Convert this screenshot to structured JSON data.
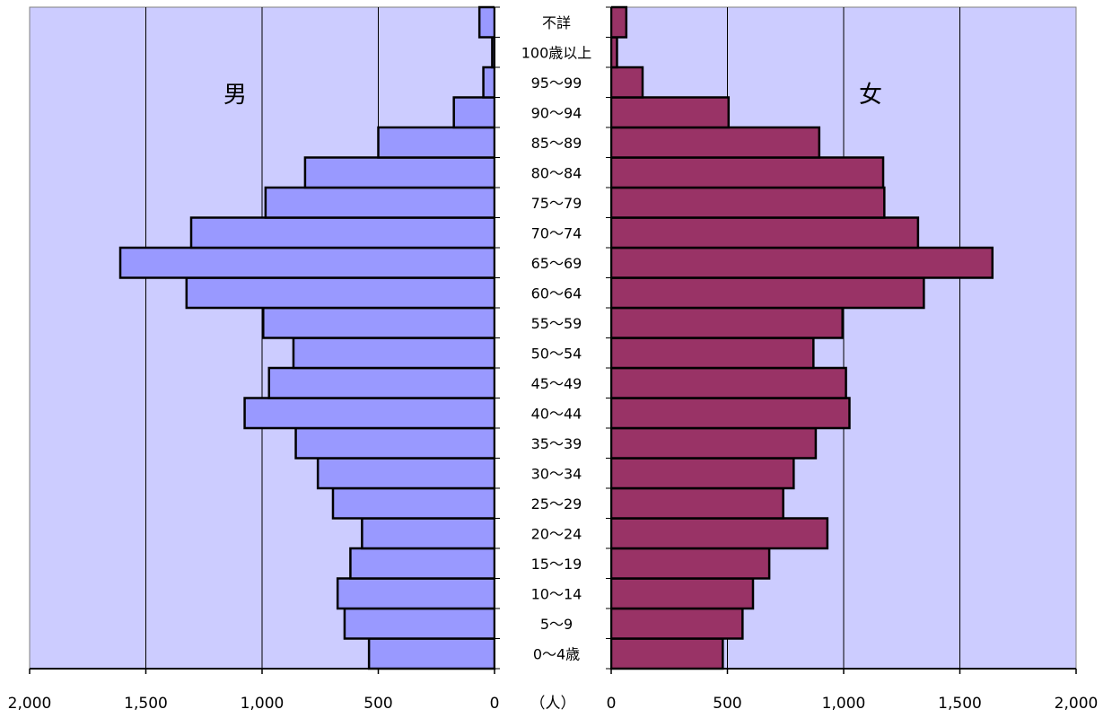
{
  "chart_data": {
    "type": "bar",
    "subtype": "population-pyramid",
    "categories": [
      "0〜4歳",
      "5〜9",
      "10〜14",
      "15〜19",
      "20〜24",
      "25〜29",
      "30〜34",
      "35〜39",
      "40〜44",
      "45〜49",
      "50〜54",
      "55〜59",
      "60〜64",
      "65〜69",
      "70〜74",
      "75〜79",
      "80〜84",
      "85〜89",
      "90〜94",
      "95〜99",
      "100歳以上",
      "不詳"
    ],
    "series": [
      {
        "name": "男",
        "side": "left",
        "values": [
          540,
          645,
          675,
          620,
          570,
          695,
          760,
          855,
          1075,
          970,
          865,
          995,
          1325,
          1610,
          1305,
          985,
          815,
          500,
          175,
          48,
          10,
          65
        ]
      },
      {
        "name": "女",
        "side": "right",
        "values": [
          480,
          565,
          610,
          680,
          930,
          740,
          785,
          880,
          1025,
          1010,
          870,
          995,
          1345,
          1640,
          1320,
          1175,
          1170,
          895,
          505,
          135,
          25,
          65
        ]
      }
    ],
    "xlim": [
      0,
      2000
    ],
    "x_ticks": [
      0,
      500,
      1000,
      1500,
      2000
    ],
    "tick_labels": [
      "0",
      "500",
      "1,000",
      "1,500",
      "2,000"
    ],
    "unit_label": "（人）",
    "colors": {
      "male": "#9999ff",
      "female": "#993366",
      "background": "#ccccff",
      "center": "#ffffff"
    },
    "grid": true
  }
}
